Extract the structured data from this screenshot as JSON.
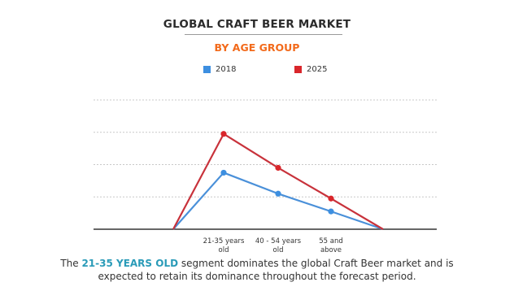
{
  "chart_data": {
    "type": "line",
    "title": "GLOBAL CRAFT BEER MARKET",
    "subtitle": "BY AGE GROUP",
    "categories": [
      "",
      "21-35 years old",
      "40 - 54 years old",
      "55 and above",
      ""
    ],
    "category_lines": [
      [],
      [
        "21-35 years",
        "old"
      ],
      [
        "40 - 54 years",
        "old"
      ],
      [
        "55 and",
        "above"
      ],
      []
    ],
    "series": [
      {
        "name": "2018",
        "color": "#3d8fe0",
        "values": [
          0,
          1.75,
          1.1,
          0.55,
          0
        ]
      },
      {
        "name": "2025",
        "color": "#d9262b",
        "values": [
          0,
          2.95,
          1.9,
          0.95,
          0
        ]
      }
    ],
    "markers_on": [
      1,
      2,
      3
    ],
    "line_colors": {
      "2018": "#4a90d9",
      "2025": "#c8323b"
    },
    "ylim": [
      0,
      4
    ],
    "gridlines": [
      1,
      2,
      3,
      4
    ],
    "grid": true,
    "legend_position": "top"
  },
  "caption": {
    "before": "The ",
    "highlight": "21-35 YEARS OLD",
    "after": " segment dominates the global Craft Beer market and is expected to retain its dominance throughout the forecast period."
  }
}
